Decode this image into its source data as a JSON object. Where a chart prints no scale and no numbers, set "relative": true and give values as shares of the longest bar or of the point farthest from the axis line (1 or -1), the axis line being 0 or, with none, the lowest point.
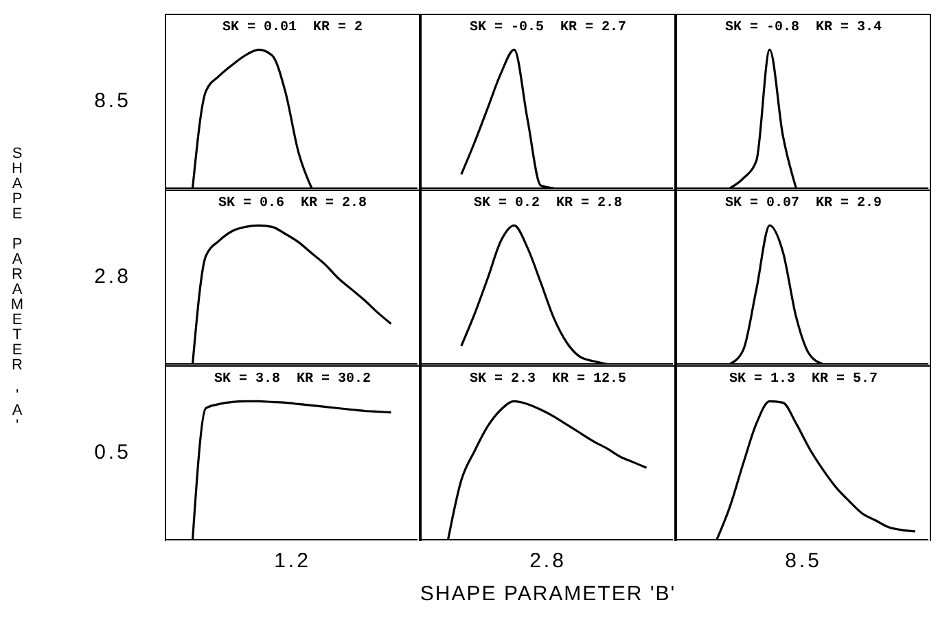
{
  "chart_data": [
    {
      "type": "line",
      "title": "SK = 0.01  KR = 2",
      "ylabel": "8.5",
      "relative": true,
      "tick_labels": false,
      "color": "#000000",
      "categories": [
        null,
        null,
        null,
        null,
        null,
        null,
        null,
        null,
        null,
        null,
        null,
        null,
        null,
        null,
        null,
        null,
        null,
        null,
        null,
        null
      ],
      "values": [
        null,
        null,
        0,
        0.7,
        0.81,
        0.89,
        0.96,
        1.0,
        0.96,
        0.7,
        0.26,
        0,
        null,
        null,
        null,
        null,
        null,
        null,
        null,
        null
      ]
    },
    {
      "type": "line",
      "title": "SK = -0.5  KR = 2.7",
      "relative": true,
      "tick_labels": false,
      "color": "#000000",
      "categories": [
        null,
        null,
        null,
        null,
        null,
        null,
        null,
        null,
        null,
        null,
        null,
        null,
        null,
        null,
        null,
        null,
        null,
        null,
        null,
        null
      ],
      "values": [
        null,
        null,
        null,
        0.1,
        0.33,
        0.58,
        0.83,
        1.0,
        0.5,
        0.02,
        0,
        null,
        null,
        null,
        null,
        null,
        null,
        null,
        null,
        null
      ]
    },
    {
      "type": "line",
      "title": "SK = -0.8  KR = 3.4",
      "relative": true,
      "tick_labels": false,
      "color": "#000000",
      "categories": [
        null,
        null,
        null,
        null,
        null,
        null,
        null,
        null,
        null,
        null,
        null,
        null,
        null,
        null,
        null,
        null,
        null,
        null,
        null,
        null
      ],
      "values": [
        null,
        null,
        null,
        null,
        0,
        0.07,
        0.2,
        1.0,
        0.38,
        0,
        null,
        null,
        null,
        null,
        null,
        null,
        null,
        null,
        null,
        null
      ]
    },
    {
      "type": "line",
      "title": "SK = 0.6  KR = 2.8",
      "ylabel": "2.8",
      "annotations": [
        "SHAPE PARAMETER 'A'"
      ],
      "relative": true,
      "tick_labels": false,
      "color": "#000000",
      "categories": [
        null,
        null,
        null,
        null,
        null,
        null,
        null,
        null,
        null,
        null,
        null,
        null,
        null,
        null,
        null,
        null,
        null,
        null,
        null,
        null
      ],
      "values": [
        null,
        null,
        0,
        0.78,
        0.89,
        0.96,
        0.99,
        1.0,
        0.99,
        0.94,
        0.88,
        0.8,
        0.72,
        0.62,
        0.54,
        0.46,
        0.37,
        0.29,
        null,
        null
      ]
    },
    {
      "type": "line",
      "title": "SK = 0.2  KR = 2.8",
      "relative": true,
      "tick_labels": false,
      "color": "#000000",
      "categories": [
        null,
        null,
        null,
        null,
        null,
        null,
        null,
        null,
        null,
        null,
        null,
        null,
        null,
        null,
        null,
        null,
        null,
        null,
        null,
        null
      ],
      "values": [
        null,
        null,
        null,
        0.13,
        0.36,
        0.62,
        0.89,
        1.0,
        0.84,
        0.59,
        0.33,
        0.15,
        0.05,
        0.02,
        0,
        null,
        null,
        null,
        null,
        null
      ]
    },
    {
      "type": "line",
      "title": "SK = 0.07  KR = 2.9",
      "relative": true,
      "tick_labels": false,
      "color": "#000000",
      "categories": [
        null,
        null,
        null,
        null,
        null,
        null,
        null,
        null,
        null,
        null,
        null,
        null,
        null,
        null,
        null,
        null,
        null,
        null,
        null,
        null
      ],
      "values": [
        null,
        null,
        null,
        null,
        0,
        0.1,
        0.54,
        1.0,
        0.81,
        0.34,
        0.07,
        0,
        null,
        null,
        null,
        null,
        null,
        null,
        null,
        null
      ]
    },
    {
      "type": "line",
      "title": "SK = 3.8  KR = 30.2",
      "ylabel": "0.5",
      "xlabel": "1.2",
      "relative": true,
      "tick_labels": false,
      "color": "#000000",
      "categories": [
        null,
        null,
        null,
        null,
        null,
        null,
        null,
        null,
        null,
        null,
        null,
        null,
        null,
        null,
        null,
        null,
        null,
        null,
        null,
        null
      ],
      "values": [
        null,
        null,
        0,
        0.95,
        0.98,
        0.995,
        1.0,
        1.0,
        0.995,
        0.99,
        0.98,
        0.97,
        0.96,
        0.95,
        0.94,
        0.93,
        0.925,
        0.92,
        null,
        null
      ]
    },
    {
      "type": "line",
      "title": "SK = 2.3  KR = 12.5",
      "xlabel": "2.8",
      "annotations": [
        "SHAPE PARAMETER 'B'"
      ],
      "relative": true,
      "tick_labels": false,
      "color": "#000000",
      "categories": [
        null,
        null,
        null,
        null,
        null,
        null,
        null,
        null,
        null,
        null,
        null,
        null,
        null,
        null,
        null,
        null,
        null,
        null,
        null,
        null
      ],
      "values": [
        null,
        null,
        0,
        0.43,
        0.64,
        0.82,
        0.94,
        1.0,
        0.98,
        0.94,
        0.89,
        0.83,
        0.77,
        0.71,
        0.66,
        0.6,
        0.56,
        0.52,
        null,
        null
      ]
    },
    {
      "type": "line",
      "title": "SK = 1.3  KR = 5.7",
      "xlabel": "8.5",
      "relative": true,
      "tick_labels": false,
      "color": "#000000",
      "categories": [
        null,
        null,
        null,
        null,
        null,
        null,
        null,
        null,
        null,
        null,
        null,
        null,
        null,
        null,
        null,
        null,
        null,
        null,
        null,
        null
      ],
      "values": [
        null,
        null,
        null,
        0,
        0.24,
        0.55,
        0.84,
        1.0,
        0.99,
        0.84,
        0.66,
        0.51,
        0.38,
        0.28,
        0.19,
        0.14,
        0.09,
        0.07,
        0.06,
        null
      ]
    }
  ]
}
